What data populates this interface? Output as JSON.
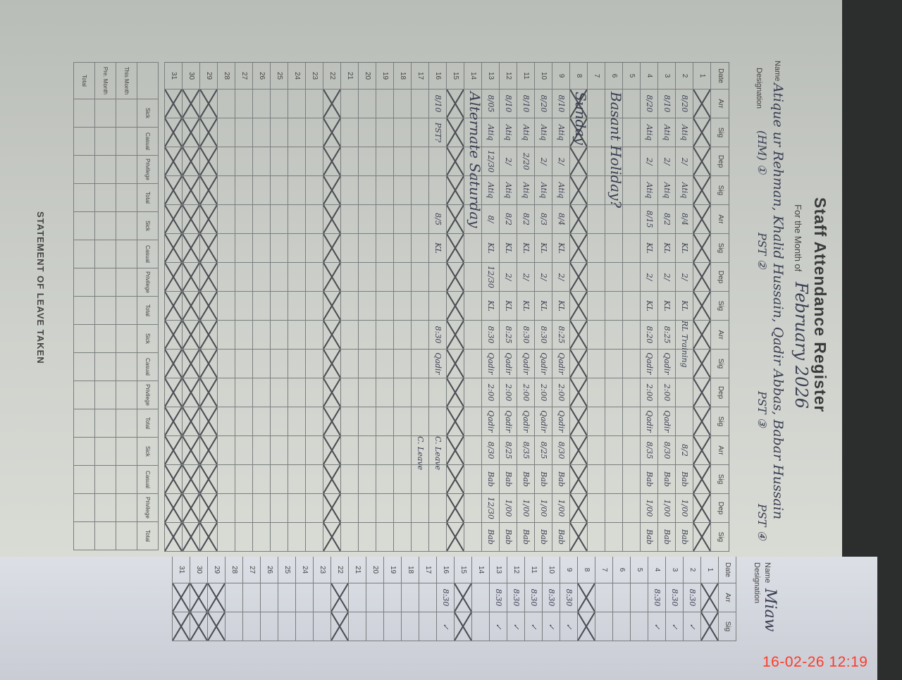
{
  "register": {
    "title": "Staff Attendance Register",
    "month_label": "For the Month of",
    "month_value": "February 2026",
    "name_label": "Name",
    "name_value": "Atique ur Rehman, Khalid Hussain, Qadir Abbas, Babar Hussain",
    "designation_label": "Designation",
    "designations": [
      "(HM) ①",
      "PST ②",
      "PST ③",
      "PST ④"
    ],
    "columns": [
      "Date",
      "Arr",
      "Sig",
      "Dep",
      "Sig",
      "Arr",
      "Sig",
      "Dep",
      "Sig",
      "Arr",
      "Sig",
      "Dep",
      "Sig",
      "Arr",
      "Sig",
      "Dep",
      "Sig"
    ],
    "rows": [
      {
        "date": "1",
        "crossed": true,
        "cells": []
      },
      {
        "date": "2",
        "cells": [
          "8/20",
          "Atiq",
          "2/",
          "Atiq",
          "8/4",
          "KL",
          "2/",
          "KL",
          "RL Training",
          "",
          "",
          "",
          "8/2",
          "Bab",
          "1/00",
          "Bab"
        ]
      },
      {
        "date": "3",
        "cells": [
          "8/10",
          "Atiq",
          "2/",
          "Atiq",
          "8/2",
          "KL",
          "2/",
          "KL",
          "8:25",
          "Qadir",
          "2:00",
          "Qadir",
          "8/30",
          "Bab",
          "1/00",
          "Bab"
        ]
      },
      {
        "date": "4",
        "cells": [
          "8/20",
          "Atiq",
          "2/",
          "Atiq",
          "8/15",
          "KL",
          "2/",
          "KL",
          "8:20",
          "Qadir",
          "2:00",
          "Qadir",
          "8/35",
          "Bab",
          "1/00",
          "Bab"
        ]
      },
      {
        "date": "5",
        "cells": []
      },
      {
        "date": "6",
        "note": "Basant Holiday?",
        "cells": []
      },
      {
        "date": "7",
        "cells": []
      },
      {
        "date": "8",
        "crossed": true,
        "note": "Sunday",
        "cells": []
      },
      {
        "date": "9",
        "cells": [
          "8/10",
          "Atiq",
          "2/",
          "Atiq",
          "8/4",
          "KL",
          "2/",
          "KL",
          "8:25",
          "Qadir",
          "2:00",
          "Qadir",
          "8/30",
          "Bab",
          "1/00",
          "Bab"
        ]
      },
      {
        "date": "10",
        "cells": [
          "8/20",
          "Atiq",
          "2/",
          "Atiq",
          "8/3",
          "KL",
          "2/",
          "KL",
          "8:30",
          "Qadir",
          "2:00",
          "Qadir",
          "8/25",
          "Bab",
          "1/00",
          "Bab"
        ]
      },
      {
        "date": "11",
        "cells": [
          "8/10",
          "Atiq",
          "2/20",
          "Atiq",
          "8/2",
          "KL",
          "2/",
          "KL",
          "8:30",
          "Qadir",
          "2:00",
          "Qadir",
          "8/35",
          "Bab",
          "1/00",
          "Bab"
        ]
      },
      {
        "date": "12",
        "cells": [
          "8/10",
          "Atiq",
          "2/",
          "Atiq",
          "8/2",
          "KL",
          "2/",
          "KL",
          "8:25",
          "Qadir",
          "2:00",
          "Qadir",
          "8/25",
          "Bab",
          "1/00",
          "Bab"
        ]
      },
      {
        "date": "13",
        "cells": [
          "8/05",
          "Atiq",
          "12/30",
          "Atiq",
          "8/",
          "KL",
          "12/30",
          "KL",
          "8:30",
          "Qadir",
          "2:00",
          "Qadir",
          "8/30",
          "Bab",
          "12/30",
          "Bab"
        ]
      },
      {
        "date": "14",
        "note": "Alternate Saturday",
        "cells": []
      },
      {
        "date": "15",
        "crossed": true,
        "cells": []
      },
      {
        "date": "16",
        "cells": [
          "8/10",
          "PST?",
          "",
          "",
          "8/5",
          "KL",
          "",
          "",
          "8:30",
          "Qadir",
          "",
          "",
          "C. Leave",
          "",
          "",
          ""
        ]
      },
      {
        "date": "17",
        "cells": [
          "",
          "",
          "",
          "",
          "",
          "",
          "",
          "",
          "",
          "",
          "",
          "",
          "C. Leave",
          "",
          "",
          ""
        ]
      },
      {
        "date": "18",
        "cells": []
      },
      {
        "date": "19",
        "cells": []
      },
      {
        "date": "20",
        "cells": []
      },
      {
        "date": "21",
        "cells": []
      },
      {
        "date": "22",
        "crossed": true,
        "cells": []
      },
      {
        "date": "23",
        "cells": []
      },
      {
        "date": "24",
        "cells": []
      },
      {
        "date": "25",
        "cells": []
      },
      {
        "date": "26",
        "cells": []
      },
      {
        "date": "27",
        "cells": []
      },
      {
        "date": "28",
        "cells": []
      },
      {
        "date": "29",
        "crossed": true,
        "cells": []
      },
      {
        "date": "30",
        "crossed": true,
        "cells": []
      },
      {
        "date": "31",
        "crossed": true,
        "cells": []
      }
    ],
    "statement": {
      "title": "STATEMENT OF LEAVE TAKEN",
      "leave_types": [
        "Sick",
        "Casual",
        "Privilege",
        "Total"
      ],
      "row_labels": [
        "This Month",
        "Pre. Month",
        "Total"
      ]
    }
  },
  "second_page": {
    "name_label": "Name",
    "name_value": "Miaw",
    "designation_label": "Designation",
    "columns": [
      "Date",
      "Arr",
      "Sig"
    ],
    "entries": {
      "2": "8:30",
      "3": "8:30",
      "4": "8:30",
      "9": "8:30",
      "10": "8:30",
      "11": "8:30",
      "12": "8:30",
      "13": "8:30",
      "16": "8:30"
    }
  },
  "camera_timestamp": "16-02-26  12:19",
  "colors": {
    "ink": "#3b3f52",
    "paper": "#cfd2cc",
    "timestamp": "#ff3b2a"
  }
}
